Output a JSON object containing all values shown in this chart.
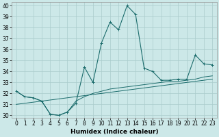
{
  "xlabel": "Humidex (Indice chaleur)",
  "bg_color": "#cce8e8",
  "grid_color": "#aacccc",
  "line_color": "#1a6b6b",
  "x_values": [
    0,
    1,
    2,
    3,
    4,
    5,
    6,
    7,
    8,
    9,
    10,
    11,
    12,
    13,
    14,
    15,
    16,
    17,
    18,
    19,
    20,
    21,
    22,
    23
  ],
  "y_main": [
    32.2,
    31.7,
    31.6,
    31.3,
    30.1,
    30.0,
    30.3,
    31.1,
    34.4,
    33.0,
    36.6,
    38.5,
    37.8,
    40.0,
    39.2,
    34.3,
    34.0,
    33.2,
    33.2,
    33.3,
    33.3,
    35.5,
    34.7,
    34.6
  ],
  "y_line2": [
    32.2,
    31.7,
    31.6,
    31.3,
    30.1,
    30.0,
    30.3,
    31.3,
    31.7,
    32.0,
    32.2,
    32.4,
    32.5,
    32.6,
    32.7,
    32.8,
    32.9,
    33.0,
    33.1,
    33.1,
    33.2,
    33.3,
    33.5,
    33.6
  ],
  "y_line3": [
    31.0,
    31.1,
    31.2,
    31.3,
    31.4,
    31.5,
    31.6,
    31.7,
    31.8,
    31.9,
    32.0,
    32.1,
    32.2,
    32.3,
    32.4,
    32.5,
    32.6,
    32.7,
    32.8,
    32.9,
    33.0,
    33.1,
    33.2,
    33.3
  ],
  "ylim_min": 30,
  "ylim_max": 40,
  "yticks": [
    30,
    31,
    32,
    33,
    34,
    35,
    36,
    37,
    38,
    39,
    40
  ],
  "xticks": [
    0,
    1,
    2,
    3,
    4,
    5,
    6,
    7,
    8,
    9,
    10,
    11,
    12,
    13,
    14,
    15,
    16,
    17,
    18,
    19,
    20,
    21,
    22,
    23
  ],
  "xlabel_fontsize": 6.5,
  "tick_fontsize": 5.5
}
